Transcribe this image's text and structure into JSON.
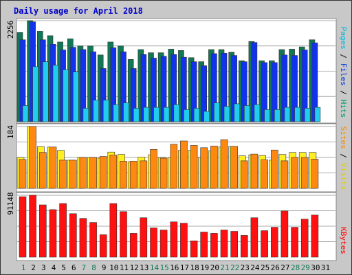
{
  "chart_data": [
    {
      "type": "bar",
      "title": "Daily usage for April 2018",
      "categories": [
        "1",
        "2",
        "3",
        "4",
        "5",
        "6",
        "7",
        "8",
        "9",
        "10",
        "11",
        "12",
        "13",
        "14",
        "15",
        "16",
        "17",
        "18",
        "19",
        "20",
        "21",
        "22",
        "23",
        "24",
        "25",
        "26",
        "27",
        "28",
        "29",
        "30",
        "31"
      ],
      "weekend_days": [
        "1",
        "7",
        "8",
        "14",
        "15",
        "21",
        "22",
        "28",
        "29"
      ],
      "ymax_label": "2256",
      "ylim": [
        0,
        2256
      ],
      "legend": [
        "Pages",
        "Files",
        "Hits"
      ],
      "legend_separator": " / ",
      "series": [
        {
          "name": "Hits",
          "color": "#117755",
          "values": [
            1990,
            2256,
            2020,
            1920,
            1780,
            1850,
            1690,
            1690,
            1490,
            1780,
            1690,
            1390,
            1610,
            1540,
            1540,
            1620,
            1590,
            1430,
            1340,
            1610,
            1610,
            1550,
            1360,
            1790,
            1360,
            1360,
            1610,
            1620,
            1670,
            1830,
            0
          ]
        },
        {
          "name": "Files",
          "color": "#1133ee",
          "values": [
            1830,
            2230,
            1830,
            1730,
            1600,
            1660,
            1610,
            1560,
            1190,
            1650,
            1560,
            1190,
            1500,
            1420,
            1460,
            1500,
            1440,
            1340,
            1250,
            1520,
            1530,
            1480,
            1340,
            1770,
            1320,
            1320,
            1490,
            1480,
            1600,
            1760,
            0
          ]
        },
        {
          "name": "Pages",
          "color": "#22ccee",
          "values": [
            360,
            1230,
            1340,
            1260,
            1160,
            1110,
            300,
            480,
            480,
            380,
            420,
            300,
            320,
            320,
            320,
            380,
            270,
            300,
            230,
            420,
            340,
            400,
            360,
            380,
            270,
            270,
            320,
            320,
            300,
            320,
            0
          ]
        }
      ]
    },
    {
      "type": "bar",
      "categories": [
        "1",
        "2",
        "3",
        "4",
        "5",
        "6",
        "7",
        "8",
        "9",
        "10",
        "11",
        "12",
        "13",
        "14",
        "15",
        "16",
        "17",
        "18",
        "19",
        "20",
        "21",
        "22",
        "23",
        "24",
        "25",
        "26",
        "27",
        "28",
        "29",
        "30",
        "31"
      ],
      "ymax_label": "184",
      "ylim": [
        0,
        184
      ],
      "legend": [
        "Sites",
        "Visits"
      ],
      "legend_separator": " / ",
      "series": [
        {
          "name": "Visits",
          "color": "#ffee22",
          "values": [
            92,
            184,
            124,
            123,
            113,
            84,
            92,
            92,
            90,
            108,
            101,
            79,
            93,
            100,
            92,
            92,
            113,
            113,
            93,
            112,
            123,
            125,
            97,
            100,
            98,
            84,
            101,
            107,
            107,
            107,
            0
          ]
        },
        {
          "name": "Sites",
          "color": "#ff8811",
          "values": [
            86,
            184,
            107,
            123,
            84,
            84,
            92,
            92,
            95,
            99,
            81,
            81,
            82,
            116,
            90,
            131,
            141,
            128,
            121,
            126,
            145,
            125,
            82,
            102,
            85,
            114,
            82,
            92,
            92,
            87,
            0
          ]
        }
      ]
    },
    {
      "type": "bar",
      "categories": [
        "1",
        "2",
        "3",
        "4",
        "5",
        "6",
        "7",
        "8",
        "9",
        "10",
        "11",
        "12",
        "13",
        "14",
        "15",
        "16",
        "17",
        "18",
        "19",
        "20",
        "21",
        "22",
        "23",
        "24",
        "25",
        "26",
        "27",
        "28",
        "29",
        "30",
        "31"
      ],
      "ymax_label": "91148",
      "ylim": [
        0,
        91148
      ],
      "legend": [
        "KBytes"
      ],
      "legend_separator": " / ",
      "series": [
        {
          "name": "KBytes",
          "color": "#ff1111",
          "values": [
            89000,
            91148,
            77000,
            70000,
            79000,
            64000,
            57000,
            51000,
            33000,
            79000,
            67000,
            35000,
            58000,
            43000,
            40000,
            52000,
            50000,
            24000,
            37000,
            35000,
            40000,
            38000,
            32000,
            58000,
            39000,
            44000,
            68000,
            44000,
            56000,
            62000,
            0
          ]
        }
      ]
    }
  ]
}
